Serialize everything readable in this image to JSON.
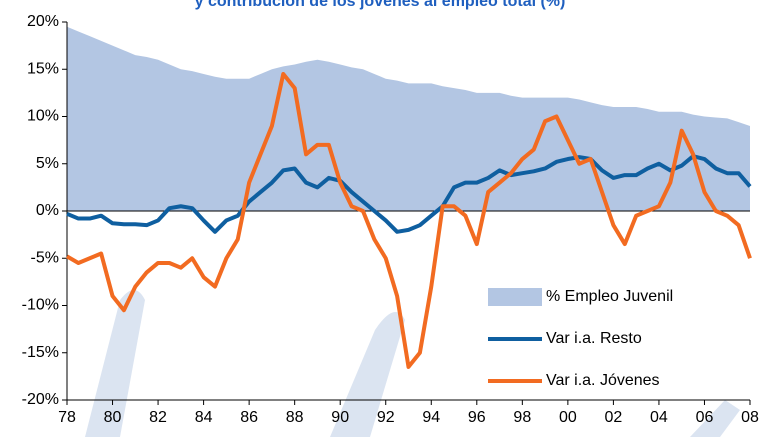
{
  "chart_data": {
    "type": "line",
    "title": "y contribución de los jóvenes al empleo total (%)",
    "x": [
      1978,
      1978.5,
      1979,
      1979.5,
      1980,
      1980.5,
      1981,
      1981.5,
      1982,
      1982.5,
      1983,
      1983.5,
      1984,
      1984.5,
      1985,
      1985.5,
      1986,
      1986.5,
      1987,
      1987.5,
      1988,
      1988.5,
      1989,
      1989.5,
      1990,
      1990.5,
      1991,
      1991.5,
      1992,
      1992.5,
      1993,
      1993.5,
      1994,
      1994.5,
      1995,
      1995.5,
      1996,
      1996.5,
      1997,
      1997.5,
      1998,
      1998.5,
      1999,
      1999.5,
      2000,
      2000.5,
      2001,
      2001.5,
      2002,
      2002.5,
      2003,
      2003.5,
      2004,
      2004.5,
      2005,
      2005.5,
      2006,
      2006.5,
      2007,
      2007.5,
      2008
    ],
    "series": [
      {
        "name": "% Empleo Juvenil",
        "kind": "area",
        "color": "#b3c6e3",
        "values": [
          19.5,
          19,
          18.5,
          18,
          17.5,
          17,
          16.5,
          16.3,
          16,
          15.5,
          15,
          14.8,
          14.5,
          14.2,
          14,
          14,
          14,
          14.5,
          15,
          15.3,
          15.5,
          15.8,
          16,
          15.8,
          15.5,
          15.2,
          15,
          14.5,
          14,
          13.8,
          13.5,
          13.5,
          13.5,
          13.2,
          13,
          12.8,
          12.5,
          12.5,
          12.5,
          12.2,
          12,
          12,
          12,
          12,
          12,
          11.8,
          11.5,
          11.2,
          11,
          11,
          11,
          10.8,
          10.5,
          10.5,
          10.5,
          10.2,
          10,
          9.9,
          9.8,
          9.4,
          9
        ]
      },
      {
        "name": "Var i.a. Resto",
        "kind": "line",
        "color": "#0f5fa0",
        "values": [
          -0.3,
          -0.8,
          -0.8,
          -0.5,
          -1.3,
          -1.4,
          -1.4,
          -1.5,
          -1,
          0.3,
          0.5,
          0.3,
          -1,
          -2.2,
          -1,
          -0.5,
          1,
          2,
          3,
          4.3,
          4.5,
          3,
          2.5,
          3.5,
          3.2,
          2,
          1,
          0,
          -1,
          -2.2,
          -2,
          -1.5,
          -0.5,
          0.5,
          2.5,
          3,
          3,
          3.5,
          4.3,
          3.8,
          4,
          4.2,
          4.5,
          5.2,
          5.5,
          5.7,
          5.5,
          4.3,
          3.5,
          3.8,
          3.8,
          4.5,
          5,
          4.3,
          4.8,
          5.8,
          5.5,
          4.5,
          4,
          4,
          2.6
        ]
      },
      {
        "name": "Var i.a. Jóvenes",
        "kind": "line",
        "color": "#f26b21",
        "values": [
          -4.8,
          -5.5,
          -5,
          -4.5,
          -9,
          -10.5,
          -8,
          -6.5,
          -5.5,
          -5.5,
          -6,
          -5,
          -7,
          -8,
          -5,
          -3,
          3,
          6,
          9,
          14.5,
          13,
          6,
          7,
          7,
          3,
          0.5,
          0,
          -3,
          -5,
          -9,
          -16.5,
          -15,
          -8,
          0.5,
          0.5,
          -0.5,
          -3.5,
          2,
          3,
          4,
          5.5,
          6.5,
          9.5,
          10,
          7.5,
          5,
          5.5,
          2,
          -1.5,
          -3.5,
          -0.5,
          0,
          0.5,
          3,
          8.5,
          6,
          2,
          0,
          -0.5,
          -1.5,
          -5
        ]
      }
    ],
    "xlim": [
      1978,
      2008
    ],
    "xticks": [
      {
        "value": 1978,
        "label": "78"
      },
      {
        "value": 1980,
        "label": "80"
      },
      {
        "value": 1982,
        "label": "82"
      },
      {
        "value": 1984,
        "label": "84"
      },
      {
        "value": 1986,
        "label": "86"
      },
      {
        "value": 1988,
        "label": "88"
      },
      {
        "value": 1990,
        "label": "90"
      },
      {
        "value": 1992,
        "label": "92"
      },
      {
        "value": 1994,
        "label": "94"
      },
      {
        "value": 1996,
        "label": "96"
      },
      {
        "value": 1998,
        "label": "98"
      },
      {
        "value": 2000,
        "label": "00"
      },
      {
        "value": 2002,
        "label": "02"
      },
      {
        "value": 2004,
        "label": "04"
      },
      {
        "value": 2006,
        "label": "06"
      },
      {
        "value": 2008,
        "label": "08"
      }
    ],
    "ylim": [
      -20,
      20
    ],
    "yticks": [
      {
        "value": 20,
        "label": "20%"
      },
      {
        "value": 15,
        "label": "15%"
      },
      {
        "value": 10,
        "label": "10%"
      },
      {
        "value": 5,
        "label": "5%"
      },
      {
        "value": 0,
        "label": "0%"
      },
      {
        "value": -5,
        "label": "-5%"
      },
      {
        "value": -10,
        "label": "-10%"
      },
      {
        "value": -15,
        "label": "-15%"
      },
      {
        "value": -20,
        "label": "-20%"
      }
    ],
    "legend": "lower right"
  }
}
